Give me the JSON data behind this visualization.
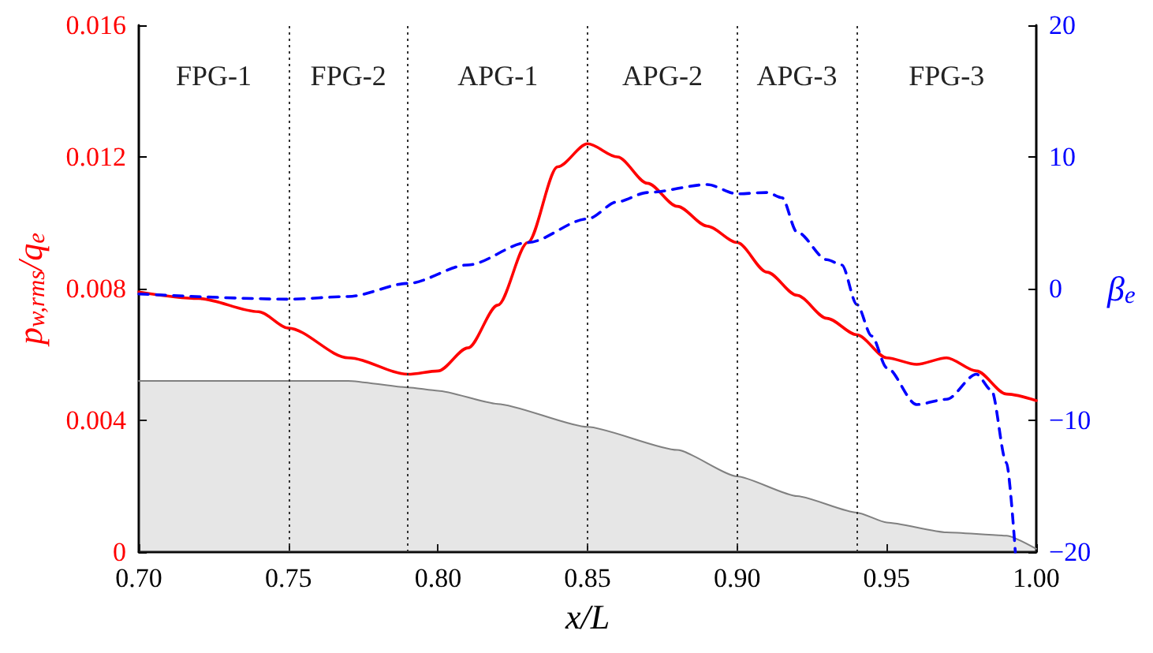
{
  "chart_data": {
    "type": "line",
    "xlabel": "x/L",
    "ylabel": "p$_{w,rms}$/q$_{e}$",
    "y2label": "β$_{e}$",
    "xlim": [
      0.7,
      1.0
    ],
    "xticks": [
      {
        "value": 0.7,
        "label": "0.70"
      },
      {
        "value": 0.75,
        "label": "0.75"
      },
      {
        "value": 0.8,
        "label": "0.80"
      },
      {
        "value": 0.85,
        "label": "0.85"
      },
      {
        "value": 0.9,
        "label": "0.90"
      },
      {
        "value": 0.95,
        "label": "0.95"
      },
      {
        "value": 1.0,
        "label": "1.00"
      }
    ],
    "ylim": [
      0,
      0.016
    ],
    "yticks": [
      0,
      0.004,
      0.008,
      0.012,
      0.016
    ],
    "y2lim": [
      -20,
      20
    ],
    "y2ticks": [
      {
        "value": -20,
        "label": "−20"
      },
      {
        "value": -10,
        "label": "−10"
      },
      0,
      10,
      20
    ],
    "grid": false,
    "series": [
      {
        "type": "area",
        "color": "#808080",
        "x": [
          0.7,
          0.74,
          0.77,
          0.79,
          0.8,
          0.82,
          0.85,
          0.88,
          0.9,
          0.92,
          0.94,
          0.95,
          0.97,
          0.99,
          1.0
        ],
        "values": [
          0.0052,
          0.0052,
          0.0052,
          0.005,
          0.0049,
          0.0045,
          0.0038,
          0.0031,
          0.0023,
          0.0017,
          0.0012,
          0.0009,
          0.0006,
          0.0005,
          0.0001
        ]
      },
      {
        "color": "#ff0000",
        "line_style": "solid",
        "x": [
          0.7,
          0.72,
          0.74,
          0.75,
          0.77,
          0.79,
          0.8,
          0.81,
          0.82,
          0.83,
          0.84,
          0.85,
          0.86,
          0.87,
          0.88,
          0.89,
          0.9,
          0.91,
          0.92,
          0.93,
          0.94,
          0.95,
          0.96,
          0.97,
          0.98,
          0.99,
          1.0
        ],
        "values": [
          0.0079,
          0.0077,
          0.0073,
          0.0068,
          0.0059,
          0.0054,
          0.0055,
          0.0062,
          0.0075,
          0.0094,
          0.0117,
          0.0124,
          0.012,
          0.0112,
          0.0105,
          0.0099,
          0.0094,
          0.0085,
          0.0078,
          0.0071,
          0.0066,
          0.0059,
          0.0057,
          0.0059,
          0.0055,
          0.0048,
          0.0046
        ]
      },
      {
        "type": "line",
        "axis": "y2",
        "color": "#0000ff",
        "line_style": "dashed",
        "x": [
          0.7,
          0.75,
          0.77,
          0.79,
          0.81,
          0.83,
          0.85,
          0.86,
          0.87,
          0.89,
          0.9,
          0.91,
          0.915,
          0.92,
          0.93,
          0.935,
          0.94,
          0.945,
          0.95,
          0.96,
          0.97,
          0.98,
          0.985,
          0.99,
          0.993
        ],
        "values": [
          -0.4,
          -0.8,
          -0.6,
          0.4,
          1.8,
          3.5,
          5.3,
          6.6,
          7.3,
          7.9,
          7.2,
          7.3,
          6.9,
          4.3,
          2.2,
          1.8,
          -1.2,
          -3.6,
          -6,
          -8.8,
          -8.4,
          -6.5,
          -7.7,
          -13.2,
          -20
        ]
      }
    ],
    "ref_lines": [
      {
        "axis": "x",
        "value": 0.75,
        "color": "#333333",
        "line_style": "dotted"
      },
      {
        "axis": "x",
        "value": 0.79,
        "color": "#333333",
        "line_style": "dotted"
      },
      {
        "axis": "x",
        "value": 0.85,
        "color": "#333333",
        "line_style": "dotted"
      },
      {
        "axis": "x",
        "value": 0.9,
        "color": "#333333",
        "line_style": "dotted"
      },
      {
        "axis": "x",
        "value": 0.94,
        "color": "#333333",
        "line_style": "dotted"
      }
    ],
    "annotations": [
      "FPG-1",
      "FPG-2",
      "APG-1",
      "APG-2",
      "APG-3",
      "FPG-3"
    ]
  }
}
